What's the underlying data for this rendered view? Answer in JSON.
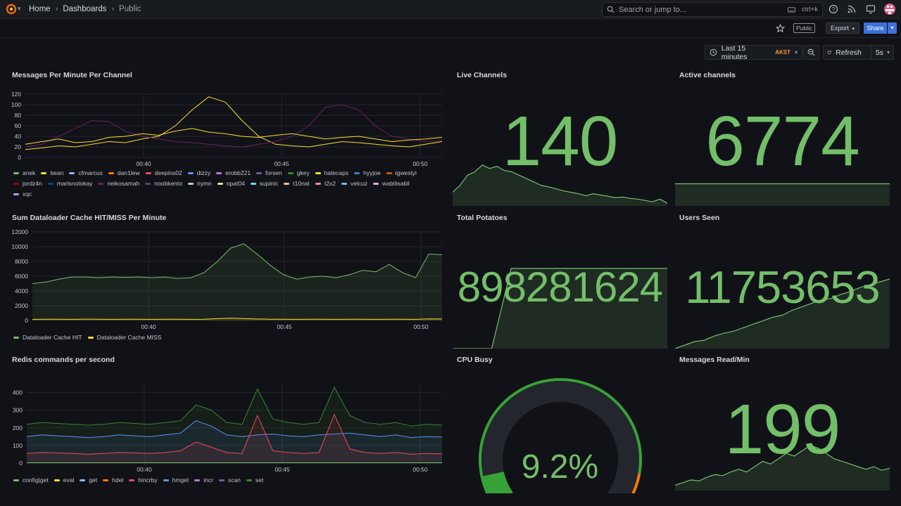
{
  "nav": {
    "breadcrumbs": [
      "Home",
      "Dashboards",
      "Public"
    ],
    "search_placeholder": "Search or jump to...",
    "search_shortcut": "ctrl+k"
  },
  "toolbar": {
    "public_badge": "Public",
    "export_label": "Export",
    "share_label": "Share"
  },
  "time": {
    "range_label": "Last 15 minutes",
    "timezone": "AKST",
    "refresh_label": "Refresh",
    "refresh_interval": "5s"
  },
  "panels": {
    "messages": {
      "title": "Messages Per Minute Per Channel",
      "legend": [
        {
          "name": "anek",
          "color": "#73bf69"
        },
        {
          "name": "bean",
          "color": "#fade2a"
        },
        {
          "name": "cfmarcus",
          "color": "#8ab8ff"
        },
        {
          "name": "dan1lew",
          "color": "#ff780a"
        },
        {
          "name": "deepins02",
          "color": "#f2495c"
        },
        {
          "name": "dizzy",
          "color": "#5794f2"
        },
        {
          "name": "erobb221",
          "color": "#b877d9"
        },
        {
          "name": "forsen",
          "color": "#705da0"
        },
        {
          "name": "gkey",
          "color": "#37872d"
        },
        {
          "name": "hatecaps",
          "color": "#fade2a"
        },
        {
          "name": "hyyjoe",
          "color": "#447ebc"
        },
        {
          "name": "igwestyi",
          "color": "#c15c17"
        },
        {
          "name": "jordz4n",
          "color": "#890f02"
        },
        {
          "name": "marlsnotokay",
          "color": "#0a437c"
        },
        {
          "name": "neikosamah",
          "color": "#6d1f62"
        },
        {
          "name": "noobkento",
          "color": "#584477"
        },
        {
          "name": "nymn",
          "color": "#b7dbab"
        },
        {
          "name": "opat04",
          "color": "#f4d598"
        },
        {
          "name": "supinic",
          "color": "#70dbed"
        },
        {
          "name": "t10nat",
          "color": "#f9ba8f"
        },
        {
          "name": "t2x2",
          "color": "#f29191"
        },
        {
          "name": "velcuz",
          "color": "#82b5d8"
        },
        {
          "name": "wabilisabil",
          "color": "#e5a8e2"
        },
        {
          "name": "xqc",
          "color": "#aea2e0"
        }
      ]
    },
    "cache": {
      "title": "Sum Dataloader Cache HIT/MISS Per Minute",
      "legend": [
        {
          "name": "Dataloader Cache HIT",
          "color": "#73bf69"
        },
        {
          "name": "Dataloader Cache MISS",
          "color": "#fade2a"
        }
      ]
    },
    "redis": {
      "title": "Redis commands per second",
      "legend": [
        {
          "name": "config|get",
          "color": "#73bf69"
        },
        {
          "name": "eval",
          "color": "#fade2a"
        },
        {
          "name": "get",
          "color": "#8ab8ff"
        },
        {
          "name": "hdel",
          "color": "#ff780a"
        },
        {
          "name": "hincrby",
          "color": "#f2495c"
        },
        {
          "name": "hmget",
          "color": "#5794f2"
        },
        {
          "name": "incr",
          "color": "#b877d9"
        },
        {
          "name": "scan",
          "color": "#705da0"
        },
        {
          "name": "set",
          "color": "#37872d"
        }
      ]
    },
    "live_channels": {
      "title": "Live Channels",
      "value": "140"
    },
    "active_channels": {
      "title": "Active channels",
      "value": "6774"
    },
    "total_potatoes": {
      "title": "Total Potatoes",
      "value": "898281624"
    },
    "users_seen": {
      "title": "Users Seen",
      "value": "11753653"
    },
    "cpu_busy": {
      "title": "CPU Busy",
      "value": "9.2%",
      "percent": 9.2
    },
    "messages_read": {
      "title": "Messages Read/Min",
      "value": "199"
    }
  },
  "chart_data": [
    {
      "type": "line",
      "title": "Messages Per Minute Per Channel",
      "x_ticks": [
        "00:40",
        "00:45",
        "00:50"
      ],
      "ylim": [
        0,
        120
      ],
      "y_ticks": [
        0,
        20,
        40,
        60,
        80,
        100,
        120
      ],
      "series": [
        {
          "name": "hatecaps",
          "values": [
            15,
            18,
            22,
            20,
            25,
            30,
            28,
            35,
            40,
            60,
            90,
            115,
            105,
            70,
            40,
            25,
            22,
            20,
            25,
            30,
            28,
            25,
            22,
            20,
            25,
            30
          ]
        },
        {
          "name": "neikosamah",
          "values": [
            20,
            25,
            40,
            55,
            70,
            68,
            50,
            40,
            35,
            30,
            28,
            25,
            22,
            20,
            25,
            30,
            40,
            60,
            95,
            100,
            90,
            60,
            40,
            35,
            30,
            32
          ]
        },
        {
          "name": "bean",
          "values": [
            25,
            30,
            35,
            28,
            30,
            38,
            40,
            45,
            42,
            50,
            55,
            48,
            45,
            40,
            38,
            42,
            45,
            40,
            35,
            38,
            40,
            35,
            30,
            33,
            35,
            38
          ]
        }
      ]
    },
    {
      "type": "area",
      "title": "Sum Dataloader Cache HIT/MISS Per Minute",
      "x_ticks": [
        "00:40",
        "00:45",
        "00:50"
      ],
      "ylim": [
        0,
        12000
      ],
      "y_ticks": [
        0,
        2000,
        4000,
        6000,
        8000,
        10000,
        12000
      ],
      "series": [
        {
          "name": "Dataloader Cache HIT",
          "values": [
            5000,
            5200,
            5600,
            5900,
            5900,
            5800,
            5900,
            5850,
            5900,
            5800,
            5900,
            5700,
            5800,
            6500,
            8000,
            9800,
            10400,
            9000,
            7500,
            6200,
            5600,
            5900,
            6000,
            5800,
            6200,
            6800,
            6600,
            7600,
            6500,
            5800,
            9000,
            8900
          ]
        },
        {
          "name": "Dataloader Cache MISS",
          "values": [
            150,
            160,
            170,
            150,
            180,
            160,
            150,
            170,
            160,
            150,
            170,
            160,
            150,
            160,
            250,
            300,
            250,
            200,
            170,
            160,
            150,
            160,
            170,
            150,
            160,
            170,
            150,
            160,
            170,
            150,
            220,
            200
          ]
        }
      ]
    },
    {
      "type": "area",
      "title": "Redis commands per second",
      "x_ticks": [
        "00:40",
        "00:45",
        "00:50"
      ],
      "ylim": [
        0,
        450
      ],
      "y_ticks": [
        0,
        100,
        200,
        300,
        400
      ],
      "series": [
        {
          "name": "set",
          "values": [
            220,
            230,
            225,
            220,
            215,
            220,
            230,
            225,
            220,
            230,
            240,
            330,
            300,
            230,
            220,
            420,
            250,
            230,
            220,
            230,
            430,
            270,
            230,
            220,
            230,
            210,
            220,
            215
          ]
        },
        {
          "name": "hmget",
          "values": [
            150,
            160,
            155,
            150,
            145,
            150,
            160,
            155,
            150,
            160,
            170,
            240,
            210,
            160,
            150,
            160,
            165,
            155,
            150,
            160,
            165,
            170,
            160,
            150,
            160,
            145,
            150,
            148
          ]
        },
        {
          "name": "hincrby",
          "values": [
            55,
            60,
            58,
            55,
            50,
            55,
            60,
            58,
            55,
            60,
            70,
            120,
            90,
            60,
            55,
            270,
            70,
            60,
            55,
            60,
            275,
            80,
            60,
            55,
            60,
            50,
            55,
            52
          ]
        },
        {
          "name": "config|get",
          "values": [
            2,
            2,
            2,
            2,
            2,
            2,
            2,
            2,
            2,
            2,
            2,
            2,
            2,
            2,
            2,
            2,
            2,
            2,
            2,
            2,
            2,
            2,
            2,
            2,
            2,
            2,
            2,
            2
          ]
        }
      ]
    },
    {
      "type": "area",
      "title": "Live Channels sparkline",
      "values": [
        20,
        30,
        45,
        50,
        60,
        55,
        58,
        52,
        50,
        45,
        40,
        35,
        30,
        28,
        25,
        22,
        20,
        18,
        15,
        18,
        16,
        14,
        12,
        13,
        11,
        10,
        8,
        6,
        10,
        4
      ]
    },
    {
      "type": "area",
      "title": "Active channels sparkline",
      "values": [
        50,
        50,
        50,
        50,
        50,
        50,
        50,
        50,
        50,
        50
      ]
    },
    {
      "type": "area",
      "title": "Total Potatoes sparkline",
      "values": [
        0,
        0,
        0,
        100,
        100,
        100,
        100,
        100,
        100,
        100,
        100,
        100
      ]
    },
    {
      "type": "area",
      "title": "Users Seen sparkline",
      "values": [
        0,
        5,
        10,
        12,
        18,
        22,
        25,
        30,
        35,
        40,
        45,
        48,
        55,
        60,
        65,
        70,
        72,
        78,
        82,
        88,
        92,
        96,
        100
      ]
    },
    {
      "type": "area",
      "title": "Messages Read/Min sparkline",
      "values": [
        10,
        15,
        20,
        18,
        25,
        30,
        28,
        35,
        40,
        35,
        45,
        55,
        50,
        60,
        70,
        65,
        75,
        85,
        80,
        70,
        60,
        55,
        50,
        45,
        40,
        45,
        38,
        42
      ]
    }
  ]
}
